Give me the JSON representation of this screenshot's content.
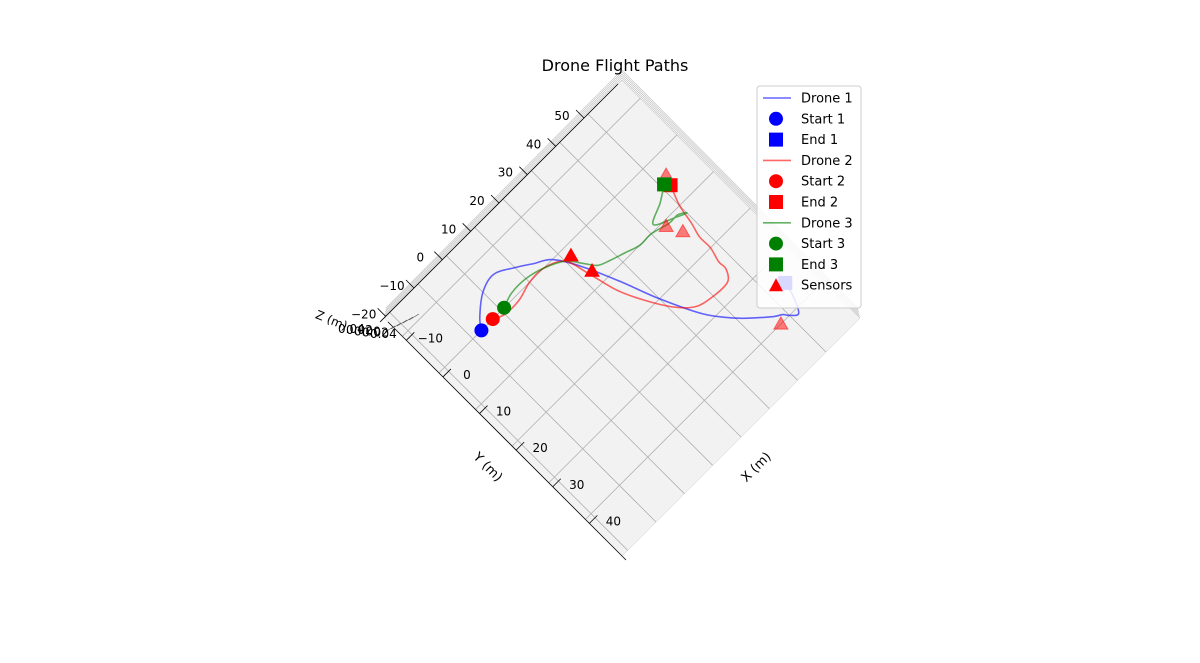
{
  "chart_data": {
    "type": "line",
    "projection": "3d",
    "title": "Drone Flight Paths",
    "xlabel": "X (m)",
    "ylabel": "Y (m)",
    "zlabel": "Z (m)",
    "xlim": [
      -15,
      50
    ],
    "ylim": [
      -22,
      62
    ],
    "x_ticks": [
      -10,
      0,
      10,
      20,
      30,
      40
    ],
    "y_ticks": [
      -20,
      -10,
      0,
      10,
      20,
      30,
      40,
      50
    ],
    "z_tick_labels": [
      "0.04",
      "0.02",
      "0.00",
      "0.02",
      "0.04"
    ],
    "grid": true,
    "legend_position": "top-right",
    "series": [
      {
        "name": "Drone 1",
        "color": "#0000ff",
        "x": [
          0,
          -2,
          -5,
          -6,
          -4,
          -2,
          0,
          5,
          12,
          20,
          28,
          33,
          36,
          38,
          39,
          40,
          41,
          38,
          35
        ],
        "y": [
          -7,
          -5,
          0,
          5,
          10,
          14,
          18,
          22,
          26,
          30,
          35,
          40,
          44,
          47,
          49,
          50,
          52,
          54,
          55
        ],
        "start": {
          "name": "Start 1",
          "x": 0,
          "y": -7
        },
        "end": {
          "name": "End 1",
          "x": 35,
          "y": 55
        }
      },
      {
        "name": "Drone 2",
        "color": "#ff0000",
        "x": [
          0,
          1,
          1,
          0,
          0,
          2,
          7,
          13,
          18,
          23,
          26,
          27,
          27,
          25,
          23,
          20,
          17,
          14,
          10,
          6
        ],
        "y": [
          -3,
          0,
          5,
          10,
          15,
          20,
          22,
          24,
          27,
          31,
          35,
          40,
          45,
          47,
          47,
          48,
          48,
          49,
          50,
          52
        ],
        "start": {
          "name": "Start 2",
          "x": 0,
          "y": -3
        },
        "end": {
          "name": "End 2",
          "x": 6,
          "y": 52
        }
      },
      {
        "name": "Drone 3",
        "color": "#008000",
        "x": [
          0,
          -1,
          -1,
          0,
          2,
          5,
          7,
          8,
          9,
          10,
          10,
          11,
          11,
          12,
          11,
          9,
          7,
          5
        ],
        "y": [
          1,
          5,
          10,
          15,
          20,
          23,
          25,
          28,
          32,
          36,
          40,
          45,
          48,
          50,
          47,
          42,
          47,
          51
        ],
        "start": {
          "name": "Start 3",
          "x": 0,
          "y": 1
        },
        "end": {
          "name": "End 3",
          "x": 5,
          "y": 51
        }
      }
    ],
    "sensors": {
      "name": "Sensors",
      "color": "#ff0000",
      "points": [
        {
          "x": 2,
          "y": 22
        },
        {
          "x": 7,
          "y": 23
        },
        {
          "x": 11,
          "y": 44
        },
        {
          "x": 14,
          "y": 46
        },
        {
          "x": 40,
          "y": 47
        },
        {
          "x": 4,
          "y": 53
        }
      ]
    }
  }
}
